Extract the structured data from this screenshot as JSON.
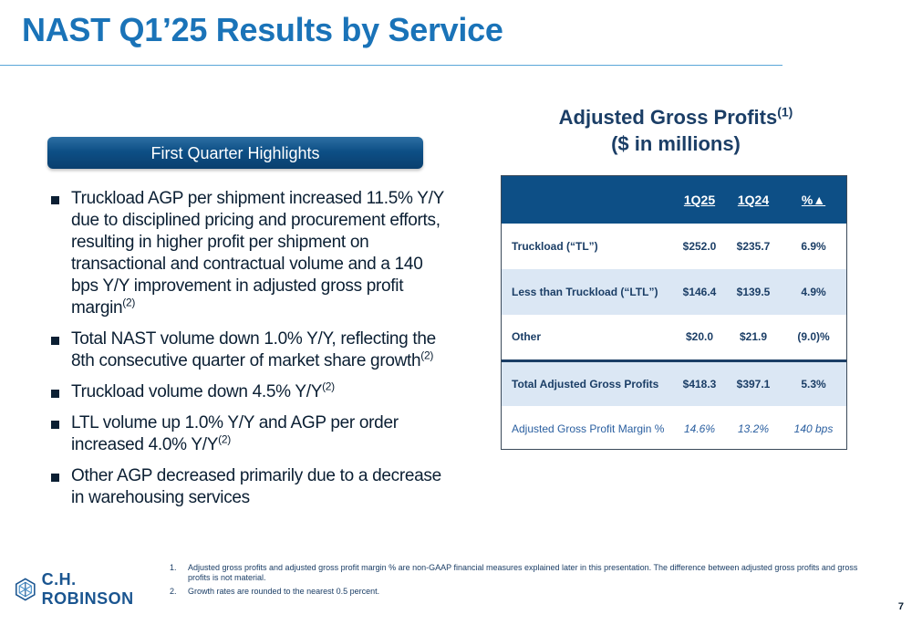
{
  "slide": {
    "title": "NAST Q1’25 Results by Service",
    "page_number": "7"
  },
  "highlights": {
    "heading": "First Quarter Highlights",
    "bullets": [
      {
        "text": "Truckload AGP per shipment increased 11.5% Y/Y due to disciplined pricing and procurement efforts, resulting in higher profit per shipment on transactional and contractual volume and a 140 bps Y/Y improvement in adjusted gross profit margin",
        "note": "(2)"
      },
      {
        "text": "Total NAST volume down 1.0% Y/Y, reflecting the 8th consecutive quarter of market share growth",
        "note": "(2)"
      },
      {
        "text": "Truckload volume down 4.5% Y/Y",
        "note": "(2)"
      },
      {
        "text": "LTL volume up 1.0% Y/Y and AGP per order increased 4.0% Y/Y",
        "note": "(2)"
      },
      {
        "text": "Other AGP decreased primarily due to a decrease in warehousing services",
        "note": ""
      }
    ]
  },
  "agp_table": {
    "title": "Adjusted Gross Profits",
    "title_note": "(1)",
    "subtitle": "($ in millions)",
    "columns": [
      "",
      "1Q25",
      "1Q24",
      "%▲"
    ],
    "rows": [
      {
        "label": "Truckload (“TL”)",
        "q125": "$252.0",
        "q124": "$235.7",
        "pct": "6.9%"
      },
      {
        "label": "Less than Truckload (“LTL”)",
        "q125": "$146.4",
        "q124": "$139.5",
        "pct": "4.9%"
      },
      {
        "label": "Other",
        "q125": "$20.0",
        "q124": "$21.9",
        "pct": "(9.0)%"
      },
      {
        "label": "Total Adjusted Gross Profits",
        "q125": "$418.3",
        "q124": "$397.1",
        "pct": "5.3%"
      },
      {
        "label": "Adjusted Gross Profit Margin %",
        "q125": "14.6%",
        "q124": "13.2%",
        "pct": "140 bps"
      }
    ]
  },
  "footnotes": [
    {
      "num": "1.",
      "text": "Adjusted gross profits and adjusted gross profit margin % are non-GAAP financial measures explained later in this presentation. The difference between adjusted gross profits and gross profits is not material."
    },
    {
      "num": "2.",
      "text": "Growth rates are rounded to the nearest 0.5 percent."
    }
  ],
  "logo": {
    "text": "C.H. ROBINSON",
    "icon": "chrobinson-hexagon-icon",
    "color": "#1a5590"
  },
  "colors": {
    "title": "#1a73b8",
    "banner": "#0d4f86",
    "table_header": "#0d4f86",
    "row_shade": "#dbe7f4"
  }
}
